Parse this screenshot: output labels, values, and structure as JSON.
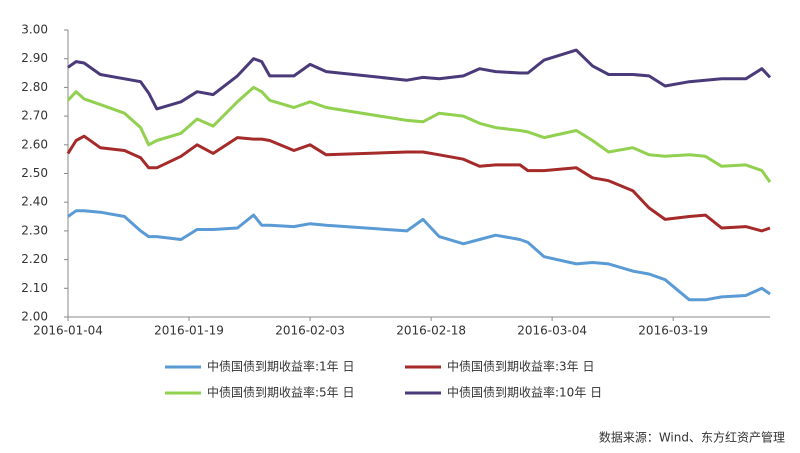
{
  "chart_data": {
    "type": "line",
    "x": [
      "2016-01-04",
      "2016-01-05",
      "2016-01-06",
      "2016-01-08",
      "2016-01-11",
      "2016-01-13",
      "2016-01-14",
      "2016-01-15",
      "2016-01-18",
      "2016-01-20",
      "2016-01-22",
      "2016-01-25",
      "2016-01-27",
      "2016-01-28",
      "2016-01-29",
      "2016-02-01",
      "2016-02-03",
      "2016-02-05",
      "2016-02-15",
      "2016-02-17",
      "2016-02-19",
      "2016-02-22",
      "2016-02-24",
      "2016-02-26",
      "2016-02-29",
      "2016-03-01",
      "2016-03-03",
      "2016-03-07",
      "2016-03-09",
      "2016-03-11",
      "2016-03-14",
      "2016-03-16",
      "2016-03-18",
      "2016-03-21",
      "2016-03-23",
      "2016-03-25",
      "2016-03-28",
      "2016-03-30",
      "2016-03-31"
    ],
    "series": [
      {
        "name": "中债国债到期收益率:1年 日",
        "color": "#5b9bd5",
        "values": [
          2.35,
          2.37,
          2.37,
          2.365,
          2.35,
          2.3,
          2.28,
          2.28,
          2.27,
          2.305,
          2.305,
          2.31,
          2.355,
          2.32,
          2.32,
          2.315,
          2.325,
          2.32,
          2.3,
          2.34,
          2.28,
          2.255,
          2.27,
          2.285,
          2.27,
          2.26,
          2.21,
          2.185,
          2.19,
          2.185,
          2.16,
          2.15,
          2.13,
          2.06,
          2.06,
          2.07,
          2.075,
          2.1,
          2.08
        ]
      },
      {
        "name": "中债国债到期收益率:3年 日",
        "color": "#a52a2a",
        "values": [
          2.57,
          2.615,
          2.63,
          2.59,
          2.58,
          2.555,
          2.52,
          2.52,
          2.56,
          2.6,
          2.57,
          2.625,
          2.62,
          2.62,
          2.615,
          2.58,
          2.6,
          2.565,
          2.575,
          2.575,
          2.565,
          2.55,
          2.525,
          2.53,
          2.53,
          2.51,
          2.51,
          2.52,
          2.485,
          2.475,
          2.44,
          2.38,
          2.34,
          2.35,
          2.355,
          2.31,
          2.315,
          2.3,
          2.31
        ]
      },
      {
        "name": "中债国债到期收益率:5年 日",
        "color": "#92d050",
        "values": [
          2.755,
          2.785,
          2.76,
          2.74,
          2.71,
          2.66,
          2.6,
          2.615,
          2.64,
          2.69,
          2.665,
          2.75,
          2.8,
          2.785,
          2.755,
          2.73,
          2.75,
          2.73,
          2.685,
          2.68,
          2.71,
          2.7,
          2.675,
          2.66,
          2.65,
          2.645,
          2.625,
          2.65,
          2.615,
          2.575,
          2.59,
          2.565,
          2.56,
          2.565,
          2.56,
          2.525,
          2.53,
          2.51,
          2.47
        ]
      },
      {
        "name": "中债国债到期收益率:10年 日",
        "color": "#4b3a7a",
        "values": [
          2.87,
          2.89,
          2.885,
          2.845,
          2.83,
          2.82,
          2.78,
          2.725,
          2.75,
          2.785,
          2.775,
          2.84,
          2.9,
          2.89,
          2.84,
          2.84,
          2.88,
          2.855,
          2.825,
          2.835,
          2.83,
          2.84,
          2.865,
          2.855,
          2.85,
          2.85,
          2.895,
          2.93,
          2.875,
          2.845,
          2.845,
          2.84,
          2.805,
          2.82,
          2.825,
          2.83,
          2.83,
          2.865,
          2.835
        ]
      }
    ],
    "xlim": [
      "2016-01-04",
      "2016-03-31"
    ],
    "xticks": [
      "2016-01-04",
      "2016-01-19",
      "2016-02-03",
      "2016-02-18",
      "2016-03-04",
      "2016-03-19"
    ],
    "ylim": [
      2.0,
      3.0
    ],
    "yticks": [
      {
        "value": 2.0,
        "label": "2.00"
      },
      {
        "value": 2.1,
        "label": "2.10"
      },
      {
        "value": 2.2,
        "label": "2.20"
      },
      {
        "value": 2.3,
        "label": "2.30"
      },
      {
        "value": 2.4,
        "label": "2.40"
      },
      {
        "value": 2.5,
        "label": "2.50"
      },
      {
        "value": 2.6,
        "label": "2.60"
      },
      {
        "value": 2.7,
        "label": "2.70"
      },
      {
        "value": 2.8,
        "label": "2.80"
      },
      {
        "value": 2.9,
        "label": "2.90"
      },
      {
        "value": 3.0,
        "label": "3.00"
      }
    ],
    "grid": false,
    "source": "数据来源：Wind、东方红资产管理"
  }
}
